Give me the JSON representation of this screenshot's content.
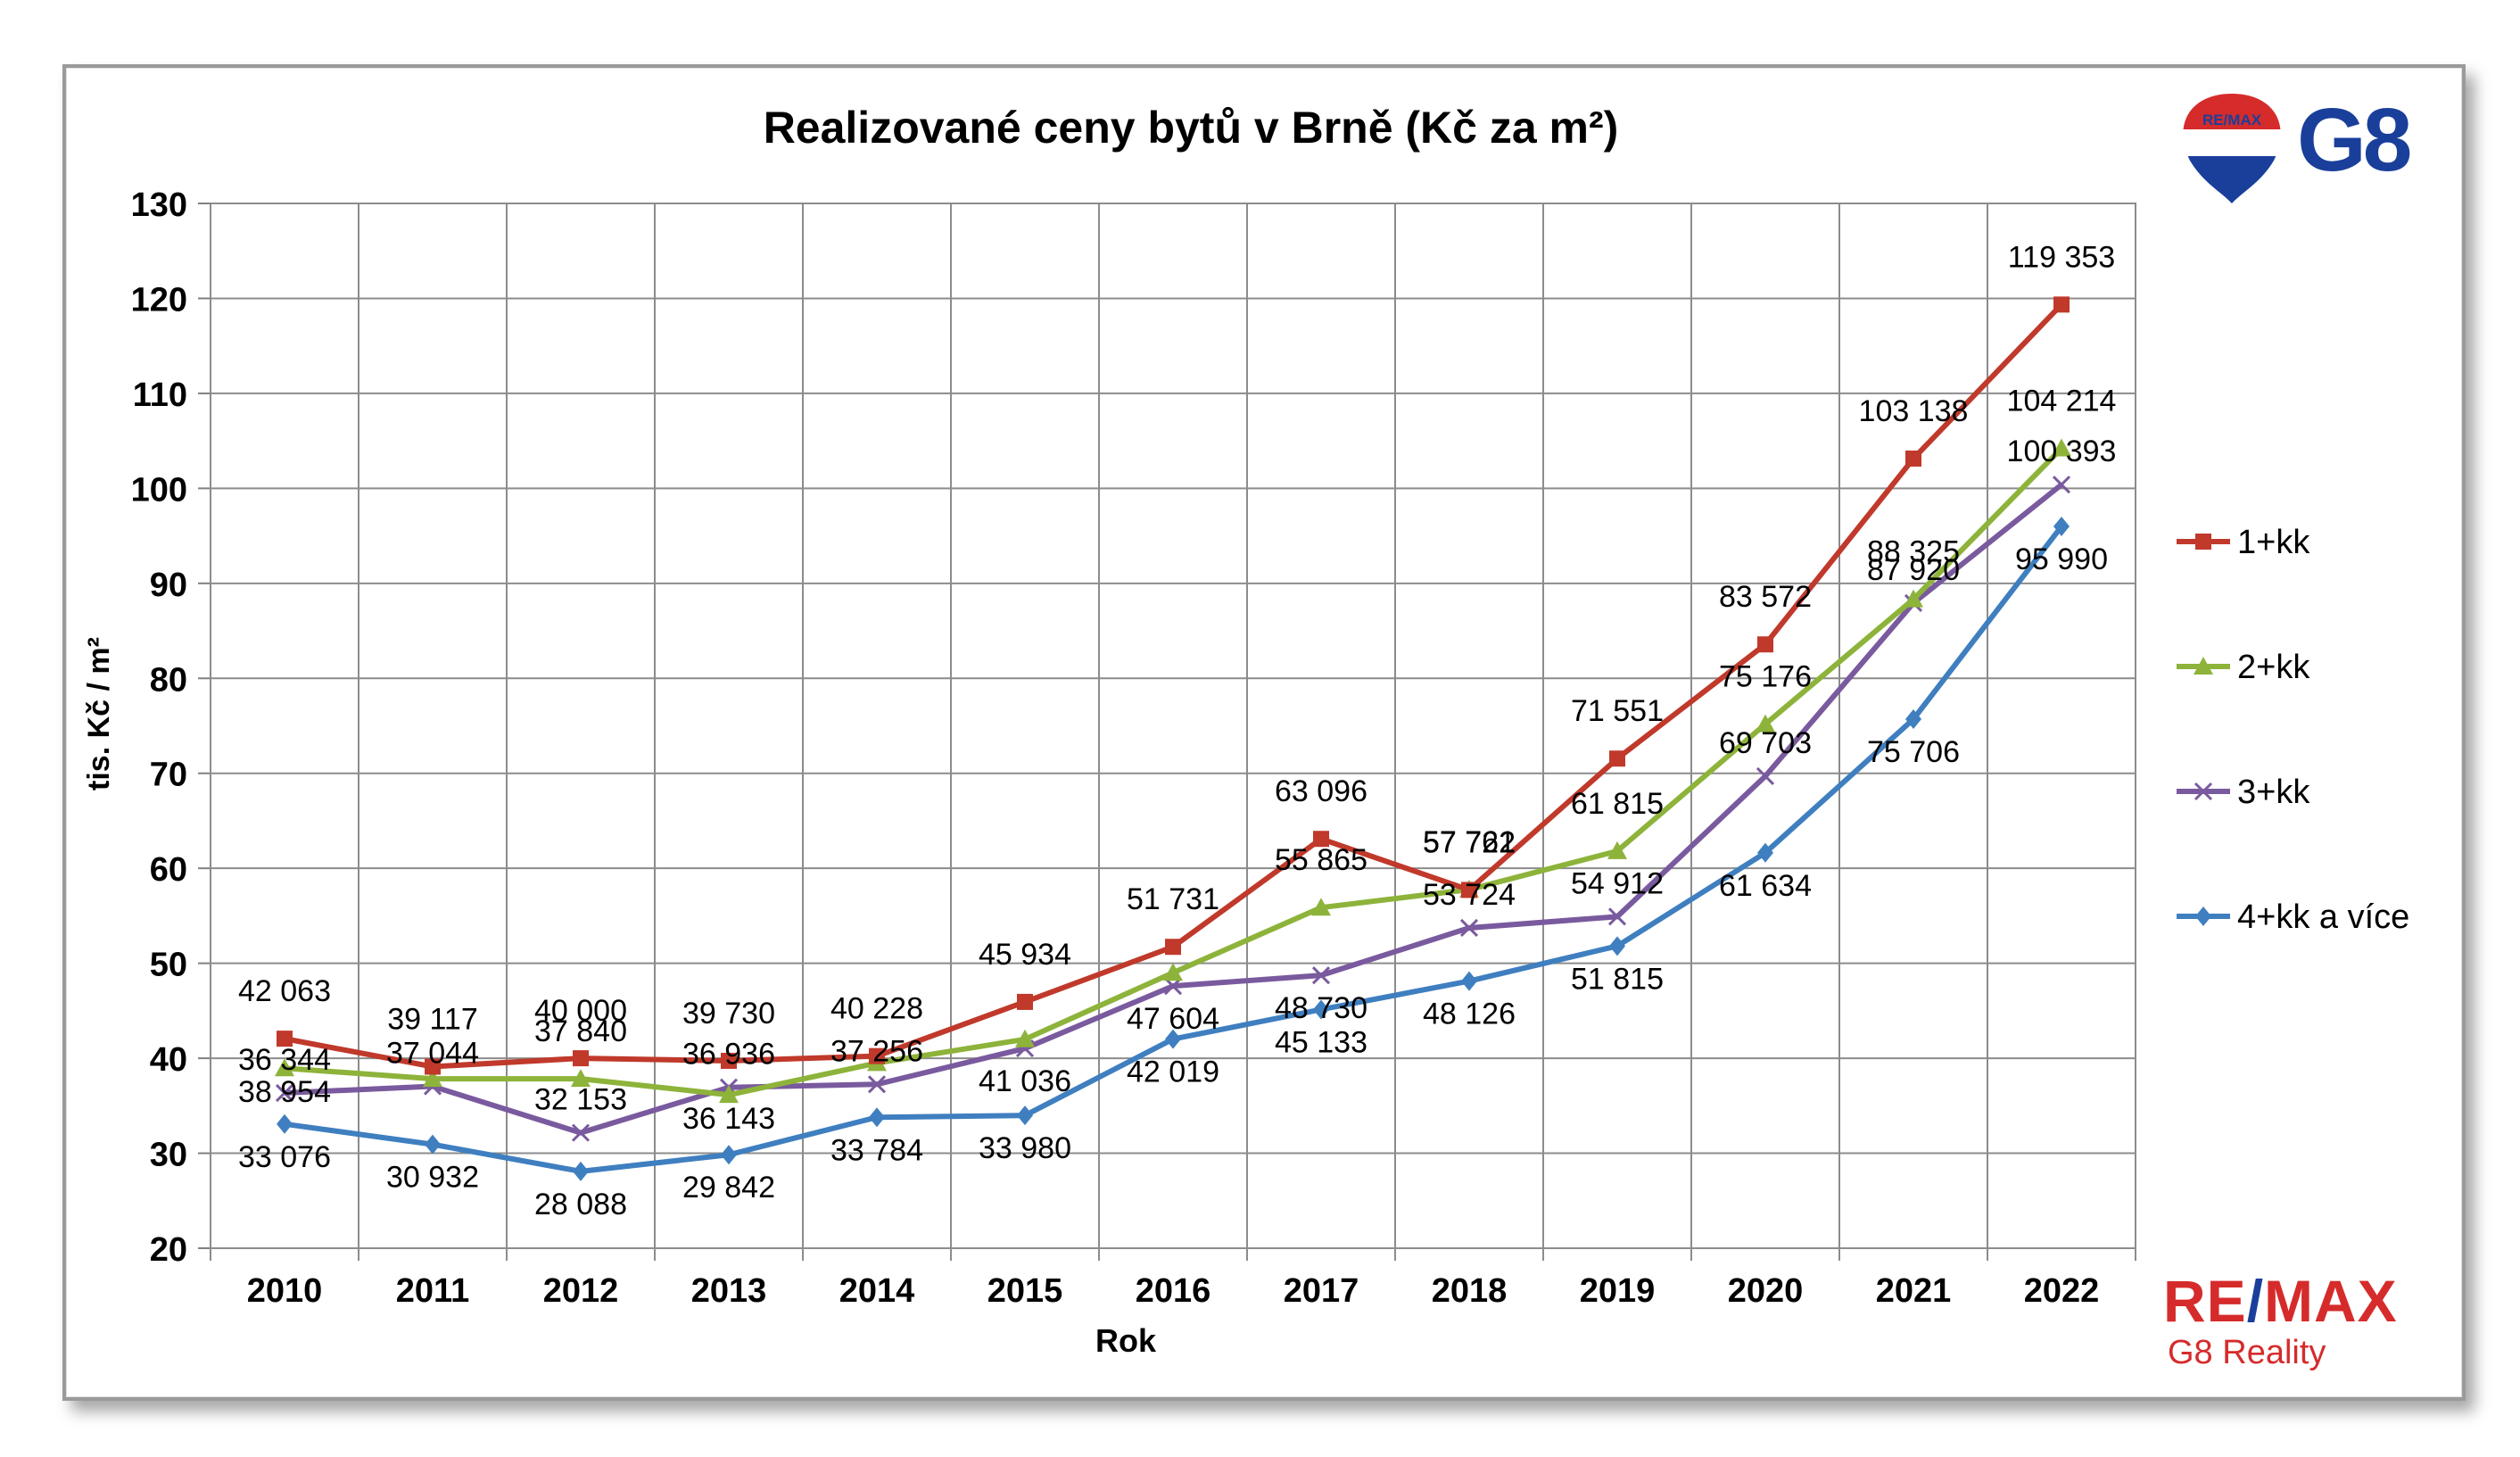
{
  "chart_data": {
    "type": "line",
    "title": "Realizované ceny bytů v Brně (Kč za m²)",
    "xlabel": "Rok",
    "ylabel": "tis. Kč / m²",
    "ylim": [
      20,
      130
    ],
    "yticks": [
      20,
      30,
      40,
      50,
      60,
      70,
      80,
      90,
      100,
      110,
      120,
      130
    ],
    "categories": [
      "2010",
      "2011",
      "2012",
      "2013",
      "2014",
      "2015",
      "2016",
      "2017",
      "2018",
      "2019",
      "2020",
      "2021",
      "2022"
    ],
    "grid": true,
    "legend_position": "right",
    "series": [
      {
        "name": "1+kk",
        "color": "#c0392b",
        "marker": "square",
        "values": [
          42.063,
          39.117,
          40.0,
          39.73,
          40.228,
          45.934,
          51.731,
          63.096,
          57.722,
          71.551,
          83.572,
          103.138,
          119.353
        ],
        "labels": [
          "42 063",
          "39 117",
          "40 000",
          "39 730",
          "40 228",
          "45 934",
          "51 731",
          "63 096",
          "57 722",
          "71 551",
          "83 572",
          "103 138",
          "119 353"
        ]
      },
      {
        "name": "2+kk",
        "color": "#8db33a",
        "marker": "triangle",
        "values": [
          38.954,
          37.84,
          37.84,
          36.143,
          39.5,
          42.0,
          49.0,
          55.865,
          57.761,
          61.815,
          75.176,
          88.325,
          104.214
        ],
        "labels": [
          "38 954",
          "",
          "37 840",
          "36 143",
          "",
          "",
          "",
          "55 865",
          "57 761",
          "61 815",
          "75 176",
          "88 325",
          "104 214"
        ]
      },
      {
        "name": "3+kk",
        "color": "#7a5a9e",
        "marker": "x",
        "values": [
          36.344,
          37.044,
          32.153,
          36.936,
          37.256,
          41.036,
          47.604,
          48.73,
          53.724,
          54.912,
          69.703,
          87.92,
          100.393
        ],
        "labels": [
          "36 344",
          "37 044",
          "32 153",
          "36 936",
          "37 256",
          "41 036",
          "47 604",
          "48 730",
          "53 724",
          "54 912",
          "69 703",
          "87 920",
          "100 393"
        ]
      },
      {
        "name": "4+kk a více",
        "color": "#3f7fc0",
        "marker": "diamond",
        "values": [
          33.076,
          30.932,
          28.088,
          29.842,
          33.784,
          33.98,
          42.019,
          45.133,
          48.126,
          51.815,
          61.634,
          75.706,
          95.99
        ],
        "labels": [
          "33 076",
          "30 932",
          "28 088",
          "29 842",
          "33 784",
          "33 980",
          "42 019",
          "45 133",
          "48 126",
          "51 815",
          "61 634",
          "75 706",
          "95 990"
        ]
      }
    ]
  },
  "logos": {
    "top_brand": "RE/MAX",
    "top_g8": "G8",
    "bottom_remax": "RE/MAX",
    "bottom_tagline": "G8 Reality"
  }
}
